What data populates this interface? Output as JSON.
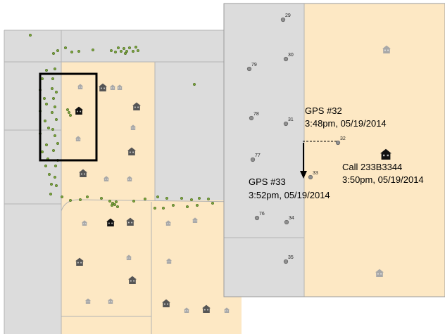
{
  "colors": {
    "gray_parcel": "#dcdcdc",
    "tan_parcel": "#fde8c4",
    "road_line": "#b4b4b4",
    "gps_point_fill": "#8f8f8f",
    "green_point_fill": "#7ba43c",
    "house_light": "#a8a8a8",
    "house_dark": "#555555",
    "house_black": "#111111",
    "frame": "#000000"
  },
  "detail": {
    "points": [
      {
        "label": "29"
      },
      {
        "label": "30"
      },
      {
        "label": "79"
      },
      {
        "label": "78"
      },
      {
        "label": "31"
      },
      {
        "label": "32"
      },
      {
        "label": "77"
      },
      {
        "label": "33"
      },
      {
        "label": "76"
      },
      {
        "label": "34"
      },
      {
        "label": "35"
      }
    ],
    "annotations": {
      "gps32_title": "GPS #32",
      "gps32_time": "3:48pm, 05/19/2014",
      "call_title": "Call 233B3344",
      "call_time": "3:50pm, 05/19/2014",
      "gps33_title": "GPS #33",
      "gps33_time": "3:52pm, 05/19/2014"
    },
    "icons": {
      "call_location": "house-icon",
      "buildings": "house-icon",
      "arrow": "arrow-down-icon"
    }
  },
  "overview": {
    "icons": {
      "buildings": "house-icon",
      "gps_trail": "dot-icon",
      "extent_box": "rectangle-frame"
    }
  }
}
